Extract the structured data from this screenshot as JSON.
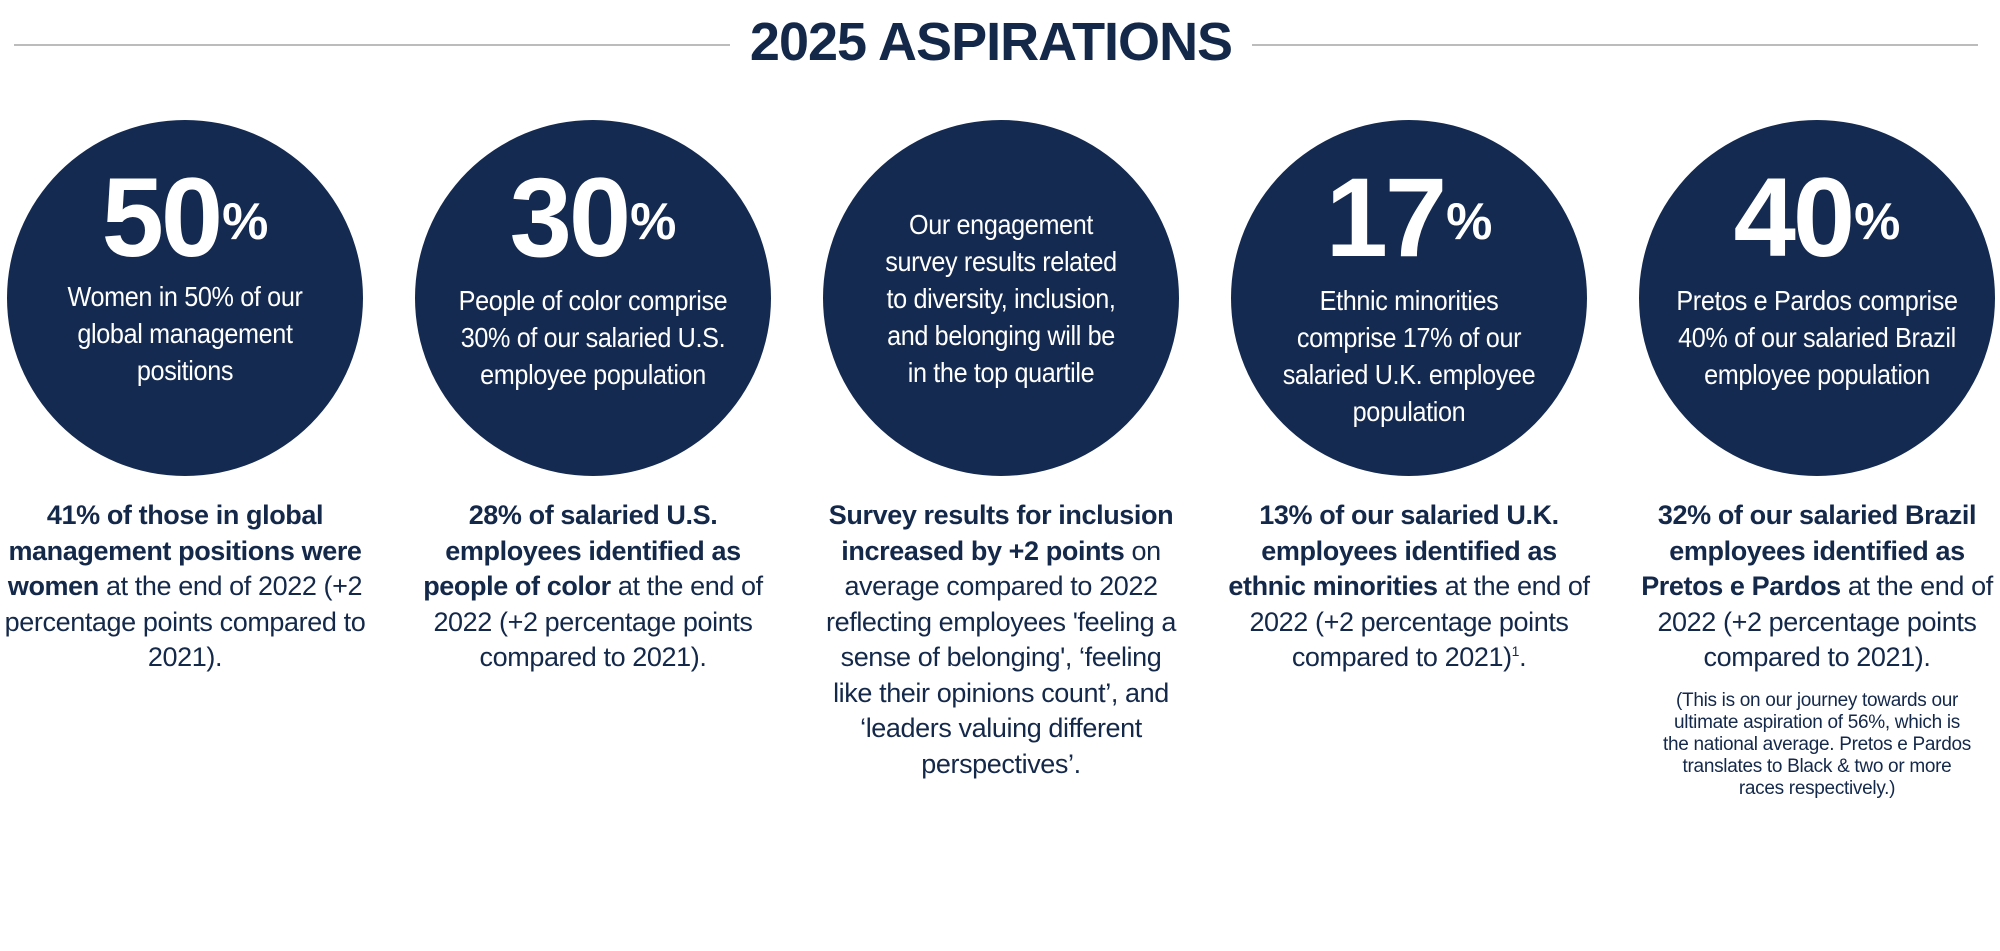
{
  "title": "2025 ASPIRATIONS",
  "cards": [
    {
      "figure": "50",
      "pct": "%",
      "circle_text": "Women in 50% of our global management positions",
      "highlight": "41% of those in global management positions were women",
      "detail": "at the end of 2022 (+2 percentage points compared to 2021)."
    },
    {
      "figure": "30",
      "pct": "%",
      "circle_text": "People of color comprise 30% of our salaried U.S. employee population",
      "highlight": "28% of salaried U.S. employees identified as people of color",
      "detail": "at the end of 2022 (+2 percentage points compared to 2021)."
    },
    {
      "circle_text": "Our engagement survey results related to diversity, inclusion, and belonging will be in the top quartile",
      "highlight": "Survey results for inclusion increased by +2 points",
      "detail": "on average compared to 2022 reflecting employees 'feeling a sense of belonging', ‘feeling like their opinions count’, and ‘leaders valuing different perspectives’."
    },
    {
      "figure": "17",
      "pct": "%",
      "circle_text": "Ethnic minorities comprise 17% of our salaried U.K. employee population",
      "highlight": "13% of our salaried U.K. employees identified as ethnic minorities",
      "detail": "at the end of 2022 (+2 percentage points compared to 2021)",
      "footnote": "1",
      "detail_end": "."
    },
    {
      "figure": "40",
      "pct": "%",
      "circle_text": "Pretos e Pardos comprise 40% of our salaried Brazil employee population",
      "highlight": "32% of our salaried Brazil employees identified as Pretos e Pardos",
      "detail": "at the end of 2022 (+2 percentage points compared to 2021).",
      "note": "(This is on our journey towards our ultimate aspiration of 56%, which is the national average. Pretos e Pardos translates to Black & two or more races respectively.)"
    }
  ]
}
